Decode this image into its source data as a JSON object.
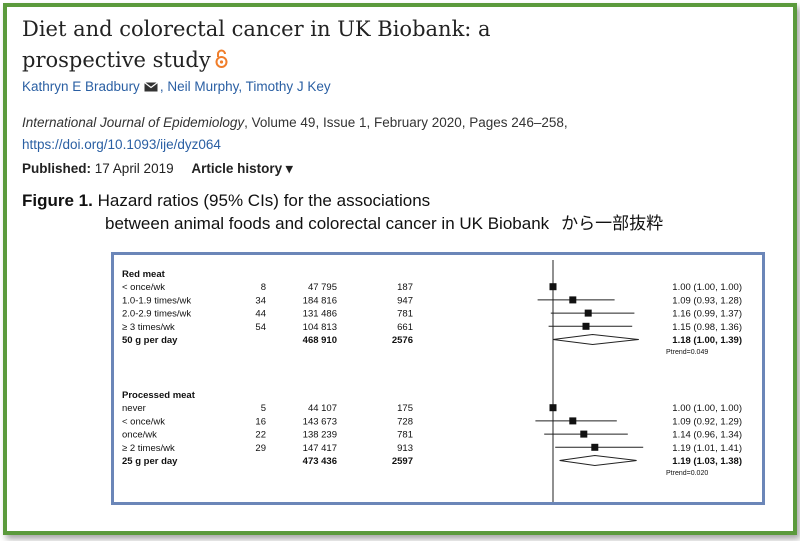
{
  "article": {
    "title": "Diet and colorectal cancer in UK Biobank: a prospective study",
    "authors": [
      "Kathryn E Bradbury",
      "Neil Murphy",
      "Timothy J Key"
    ],
    "journal_name": "International Journal of Epidemiology",
    "journal_details": ", Volume 49, Issue 1, February 2020, Pages 246–258,",
    "doi": "https://doi.org/10.1093/ije/dyz064",
    "published_label": "Published:",
    "published_date": "17 April 2019",
    "history_label": "Article history ▾"
  },
  "caption": {
    "figure_label": "Figure 1.",
    "line1": " Hazard ratios (95% CIs) for the associations",
    "line2": "between animal foods and colorectal cancer in UK Biobank",
    "note": "から一部抜粋"
  },
  "colors": {
    "frame": "#5b9a3c",
    "figure_border": "#6b86b8",
    "link": "#2a5fa3"
  },
  "icons": {
    "open_access": "open-access-lock-icon",
    "email": "envelope-icon"
  },
  "chart_data": {
    "type": "forest",
    "reference_hr": 1.0,
    "groups": [
      {
        "name": "Red meat",
        "rows": [
          {
            "label": "< once/wk",
            "cases": "8",
            "n": "47 795",
            "events": "187",
            "hr": 1.0,
            "lo": 1.0,
            "hi": 1.0,
            "text": "1.00 (1.00, 1.00)",
            "bold": false
          },
          {
            "label": "1.0-1.9 times/wk",
            "cases": "34",
            "n": "184 816",
            "events": "947",
            "hr": 1.09,
            "lo": 0.93,
            "hi": 1.28,
            "text": "1.09 (0.93, 1.28)",
            "bold": false
          },
          {
            "label": "2.0-2.9 times/wk",
            "cases": "44",
            "n": "131 486",
            "events": "781",
            "hr": 1.16,
            "lo": 0.99,
            "hi": 1.37,
            "text": "1.16 (0.99, 1.37)",
            "bold": false
          },
          {
            "label": "≥ 3 times/wk",
            "cases": "54",
            "n": "104 813",
            "events": "661",
            "hr": 1.15,
            "lo": 0.98,
            "hi": 1.36,
            "text": "1.15 (0.98, 1.36)",
            "bold": false
          },
          {
            "label": "50 g per day",
            "cases": "",
            "n": "468 910",
            "events": "2576",
            "hr": 1.18,
            "lo": 1.0,
            "hi": 1.39,
            "text": "1.18 (1.00, 1.39)",
            "bold": true,
            "summary": true
          }
        ],
        "ptrend": "Ptrend=0.049"
      },
      {
        "name": "Processed meat",
        "rows": [
          {
            "label": "never",
            "cases": "5",
            "n": "44 107",
            "events": "175",
            "hr": 1.0,
            "lo": 1.0,
            "hi": 1.0,
            "text": "1.00 (1.00, 1.00)",
            "bold": false
          },
          {
            "label": "< once/wk",
            "cases": "16",
            "n": "143 673",
            "events": "728",
            "hr": 1.09,
            "lo": 0.92,
            "hi": 1.29,
            "text": "1.09 (0.92, 1.29)",
            "bold": false
          },
          {
            "label": "once/wk",
            "cases": "22",
            "n": "138 239",
            "events": "781",
            "hr": 1.14,
            "lo": 0.96,
            "hi": 1.34,
            "text": "1.14 (0.96, 1.34)",
            "bold": false
          },
          {
            "label": "≥ 2 times/wk",
            "cases": "29",
            "n": "147 417",
            "events": "913",
            "hr": 1.19,
            "lo": 1.01,
            "hi": 1.41,
            "text": "1.19 (1.01, 1.41)",
            "bold": false
          },
          {
            "label": "25 g per day",
            "cases": "",
            "n": "473 436",
            "events": "2597",
            "hr": 1.19,
            "lo": 1.03,
            "hi": 1.38,
            "text": "1.19 (1.03, 1.38)",
            "bold": true,
            "summary": true
          }
        ],
        "ptrend": "Ptrend=0.020"
      }
    ]
  }
}
